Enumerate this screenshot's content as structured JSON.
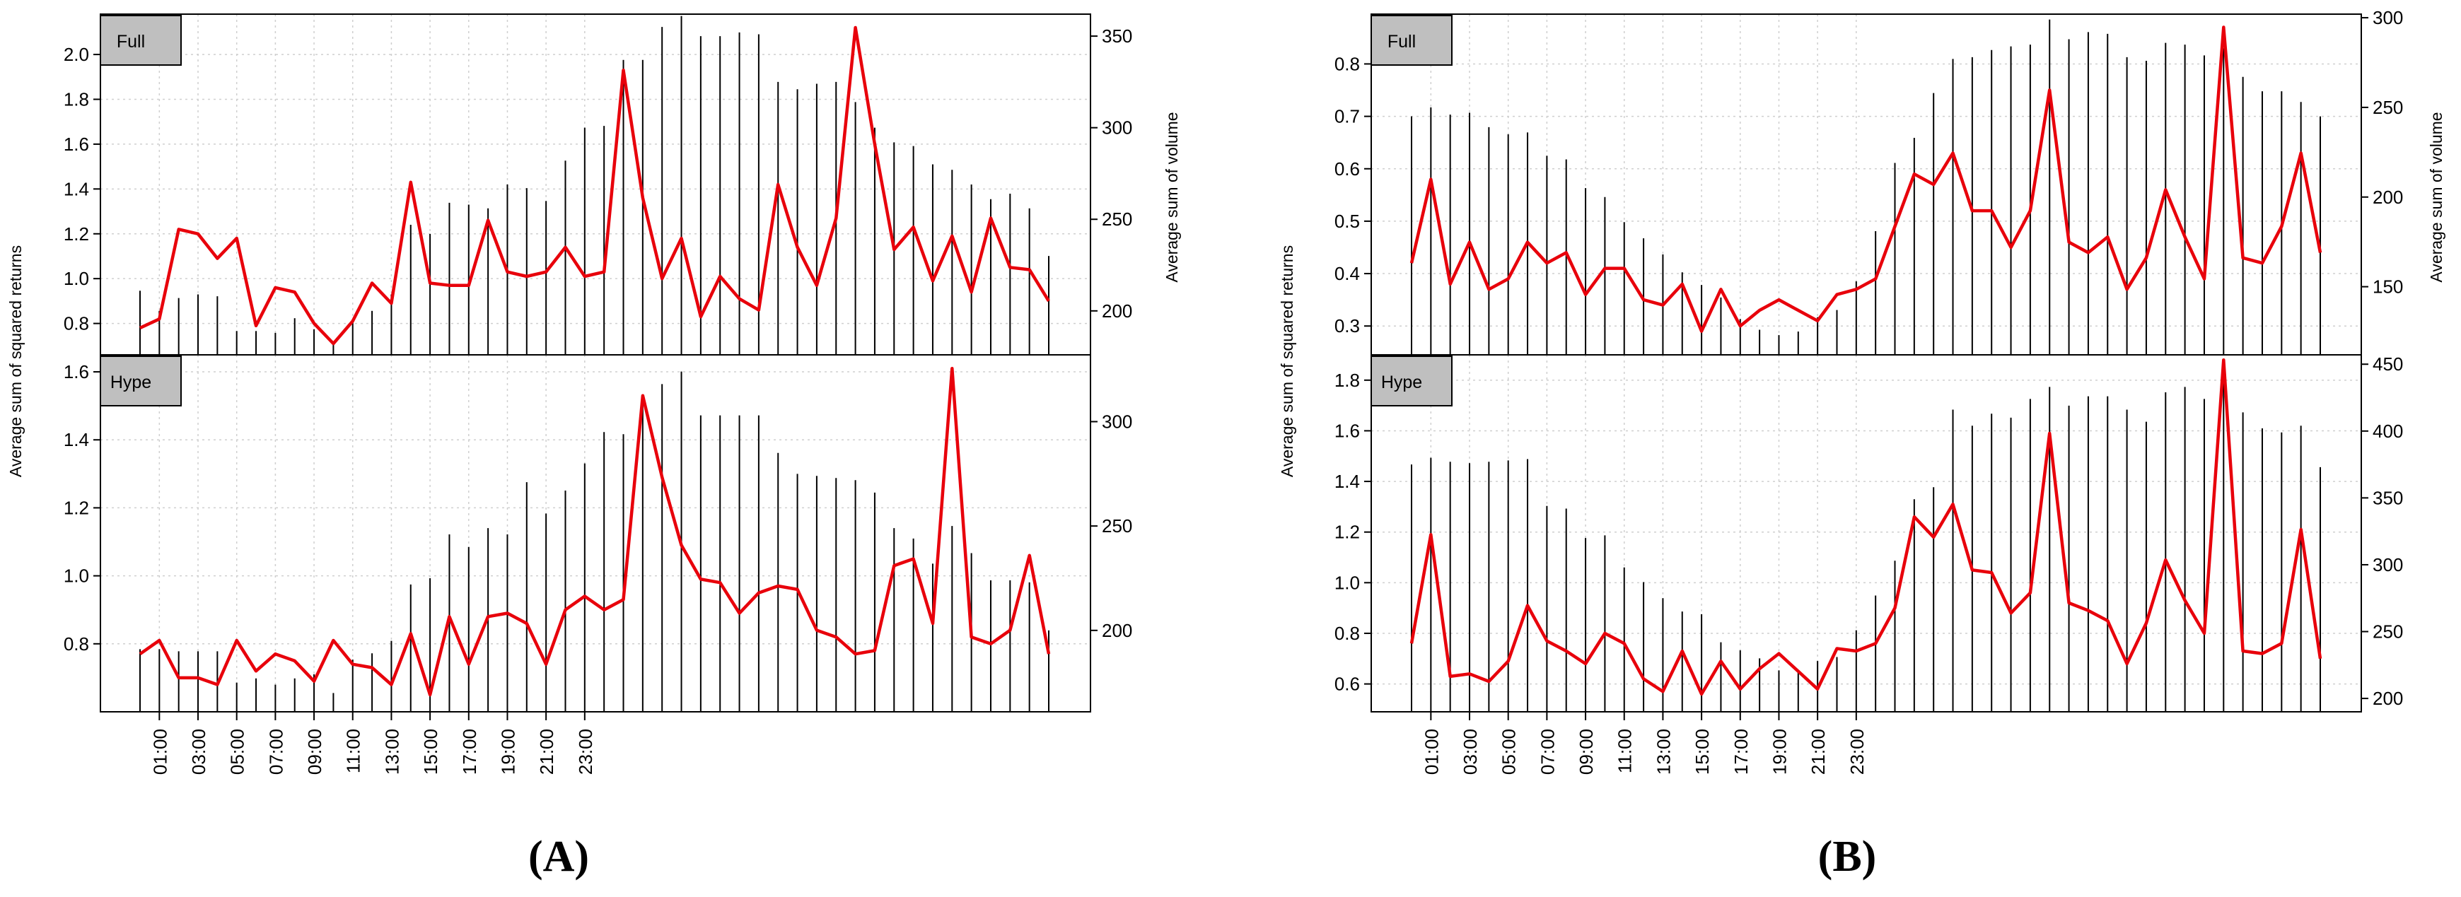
{
  "chart_data": [
    {
      "type": "line",
      "label": "(A)",
      "x_tick_labels": [
        "01:00",
        "03:00",
        "05:00",
        "07:00",
        "09:00",
        "11:00",
        "13:00",
        "15:00",
        "17:00",
        "19:00",
        "21:00",
        "23:00"
      ],
      "left_axis_label": "Average sum of squared returns",
      "right_axis_label": "Average sum of volume",
      "panels": [
        {
          "name": "Full",
          "left_ylim": [
            0.66,
            2.18
          ],
          "left_ticks": [
            "0.8",
            "1.0",
            "1.2",
            "1.4",
            "1.6",
            "1.8",
            "2.0"
          ],
          "right_ylim": [
            176,
            362
          ],
          "right_ticks": [
            "200",
            "250",
            "300",
            "350"
          ],
          "returns": [
            0.78,
            0.82,
            1.22,
            1.2,
            1.09,
            1.18,
            0.79,
            0.96,
            0.94,
            0.8,
            0.71,
            0.81,
            0.98,
            0.89,
            1.43,
            0.98,
            0.97,
            0.97,
            1.26,
            1.03,
            1.01,
            1.03,
            1.14,
            1.01,
            1.03,
            1.93,
            1.36,
            1.0,
            1.18,
            0.83,
            1.01,
            0.91,
            0.86,
            1.42,
            1.14,
            0.97,
            1.27,
            2.12,
            1.6,
            1.13,
            1.23,
            0.99,
            1.19,
            0.94,
            1.27,
            1.05,
            1.04,
            0.9
          ],
          "volume": [
            211,
            200,
            207,
            209,
            208,
            189,
            189,
            188,
            196,
            190,
            182,
            195,
            200,
            209,
            247,
            242,
            259,
            258,
            256,
            269,
            267,
            260,
            282,
            300,
            301,
            337,
            337,
            355,
            361,
            350,
            350,
            352,
            351,
            325,
            321,
            324,
            325,
            314,
            300,
            292,
            290,
            280,
            277,
            269,
            261,
            264,
            256,
            230
          ]
        },
        {
          "name": "Hype",
          "left_ylim": [
            0.6,
            1.65
          ],
          "left_ticks": [
            "0.8",
            "1.0",
            "1.2",
            "1.4",
            "1.6"
          ],
          "right_ylim": [
            161,
            332
          ],
          "right_ticks": [
            "200",
            "250",
            "300"
          ],
          "returns": [
            0.77,
            0.81,
            0.7,
            0.7,
            0.68,
            0.81,
            0.72,
            0.77,
            0.75,
            0.69,
            0.81,
            0.74,
            0.73,
            0.68,
            0.83,
            0.65,
            0.88,
            0.74,
            0.88,
            0.89,
            0.86,
            0.74,
            0.9,
            0.94,
            0.9,
            0.93,
            1.53,
            1.29,
            1.09,
            0.99,
            0.98,
            0.89,
            0.95,
            0.97,
            0.96,
            0.84,
            0.82,
            0.77,
            0.78,
            1.03,
            1.05,
            0.86,
            1.61,
            0.82,
            0.8,
            0.84,
            1.06,
            0.77
          ],
          "volume": [
            191,
            191,
            190,
            190,
            190,
            175,
            177,
            174,
            177,
            179,
            170,
            186,
            189,
            195,
            222,
            225,
            246,
            240,
            249,
            246,
            271,
            256,
            267,
            280,
            295,
            294,
            310,
            318,
            324,
            303,
            303,
            303,
            303,
            285,
            275,
            274,
            273,
            272,
            266,
            249,
            244,
            232,
            250,
            237,
            224,
            224,
            223,
            200
          ]
        }
      ]
    },
    {
      "type": "line",
      "label": "(B)",
      "x_tick_labels": [
        "01:00",
        "03:00",
        "05:00",
        "07:00",
        "09:00",
        "11:00",
        "13:00",
        "15:00",
        "17:00",
        "19:00",
        "21:00",
        "23:00"
      ],
      "left_axis_label": "Average sum of squared returns",
      "right_axis_label": "Average sum of volume",
      "panels": [
        {
          "name": "Full",
          "left_ylim": [
            0.245,
            0.895
          ],
          "left_ticks": [
            "0.3",
            "0.4",
            "0.5",
            "0.6",
            "0.7",
            "0.8"
          ],
          "right_ylim": [
            112,
            302
          ],
          "right_ticks": [
            "150",
            "200",
            "250",
            "300"
          ],
          "returns": [
            0.42,
            0.58,
            0.38,
            0.46,
            0.37,
            0.39,
            0.46,
            0.42,
            0.44,
            0.36,
            0.41,
            0.41,
            0.35,
            0.34,
            0.38,
            0.29,
            0.37,
            0.3,
            0.33,
            0.35,
            0.33,
            0.31,
            0.36,
            0.37,
            0.39,
            0.49,
            0.59,
            0.57,
            0.63,
            0.52,
            0.52,
            0.45,
            0.52,
            0.75,
            0.46,
            0.44,
            0.47,
            0.37,
            0.43,
            0.56,
            0.47,
            0.39,
            0.87,
            0.43,
            0.42,
            0.49,
            0.63,
            0.44
          ],
          "volume": [
            245,
            250,
            246,
            247,
            239,
            235,
            236,
            223,
            221,
            205,
            200,
            186,
            177,
            168,
            158,
            151,
            144,
            132,
            126,
            123,
            125,
            133,
            137,
            153,
            181,
            219,
            233,
            258,
            277,
            278,
            282,
            284,
            285,
            299,
            288,
            292,
            291,
            278,
            276,
            286,
            285,
            279,
            283,
            267,
            259,
            259,
            253,
            245
          ]
        },
        {
          "name": "Hype",
          "left_ylim": [
            0.49,
            1.9
          ],
          "left_ticks": [
            "0.6",
            "0.8",
            "1.0",
            "1.2",
            "1.4",
            "1.6",
            "1.8"
          ],
          "right_ylim": [
            190,
            457
          ],
          "right_ticks": [
            "200",
            "250",
            "300",
            "350",
            "400",
            "450"
          ],
          "returns": [
            0.76,
            1.19,
            0.63,
            0.64,
            0.61,
            0.69,
            0.91,
            0.77,
            0.73,
            0.68,
            0.8,
            0.76,
            0.62,
            0.57,
            0.73,
            0.56,
            0.69,
            0.58,
            0.66,
            0.72,
            0.65,
            0.58,
            0.74,
            0.73,
            0.76,
            0.9,
            1.26,
            1.18,
            1.31,
            1.05,
            1.04,
            0.88,
            0.96,
            1.59,
            0.92,
            0.89,
            0.85,
            0.68,
            0.84,
            1.09,
            0.93,
            0.8,
            1.88,
            0.73,
            0.72,
            0.76,
            1.21,
            0.7
          ],
          "volume": [
            375,
            380,
            377,
            376,
            377,
            378,
            379,
            344,
            342,
            320,
            322,
            298,
            287,
            275,
            265,
            263,
            242,
            236,
            230,
            221,
            220,
            228,
            231,
            251,
            277,
            303,
            349,
            358,
            416,
            404,
            413,
            410,
            424,
            433,
            419,
            426,
            426,
            416,
            407,
            429,
            433,
            424,
            443,
            414,
            402,
            399,
            404,
            373
          ]
        }
      ]
    }
  ]
}
